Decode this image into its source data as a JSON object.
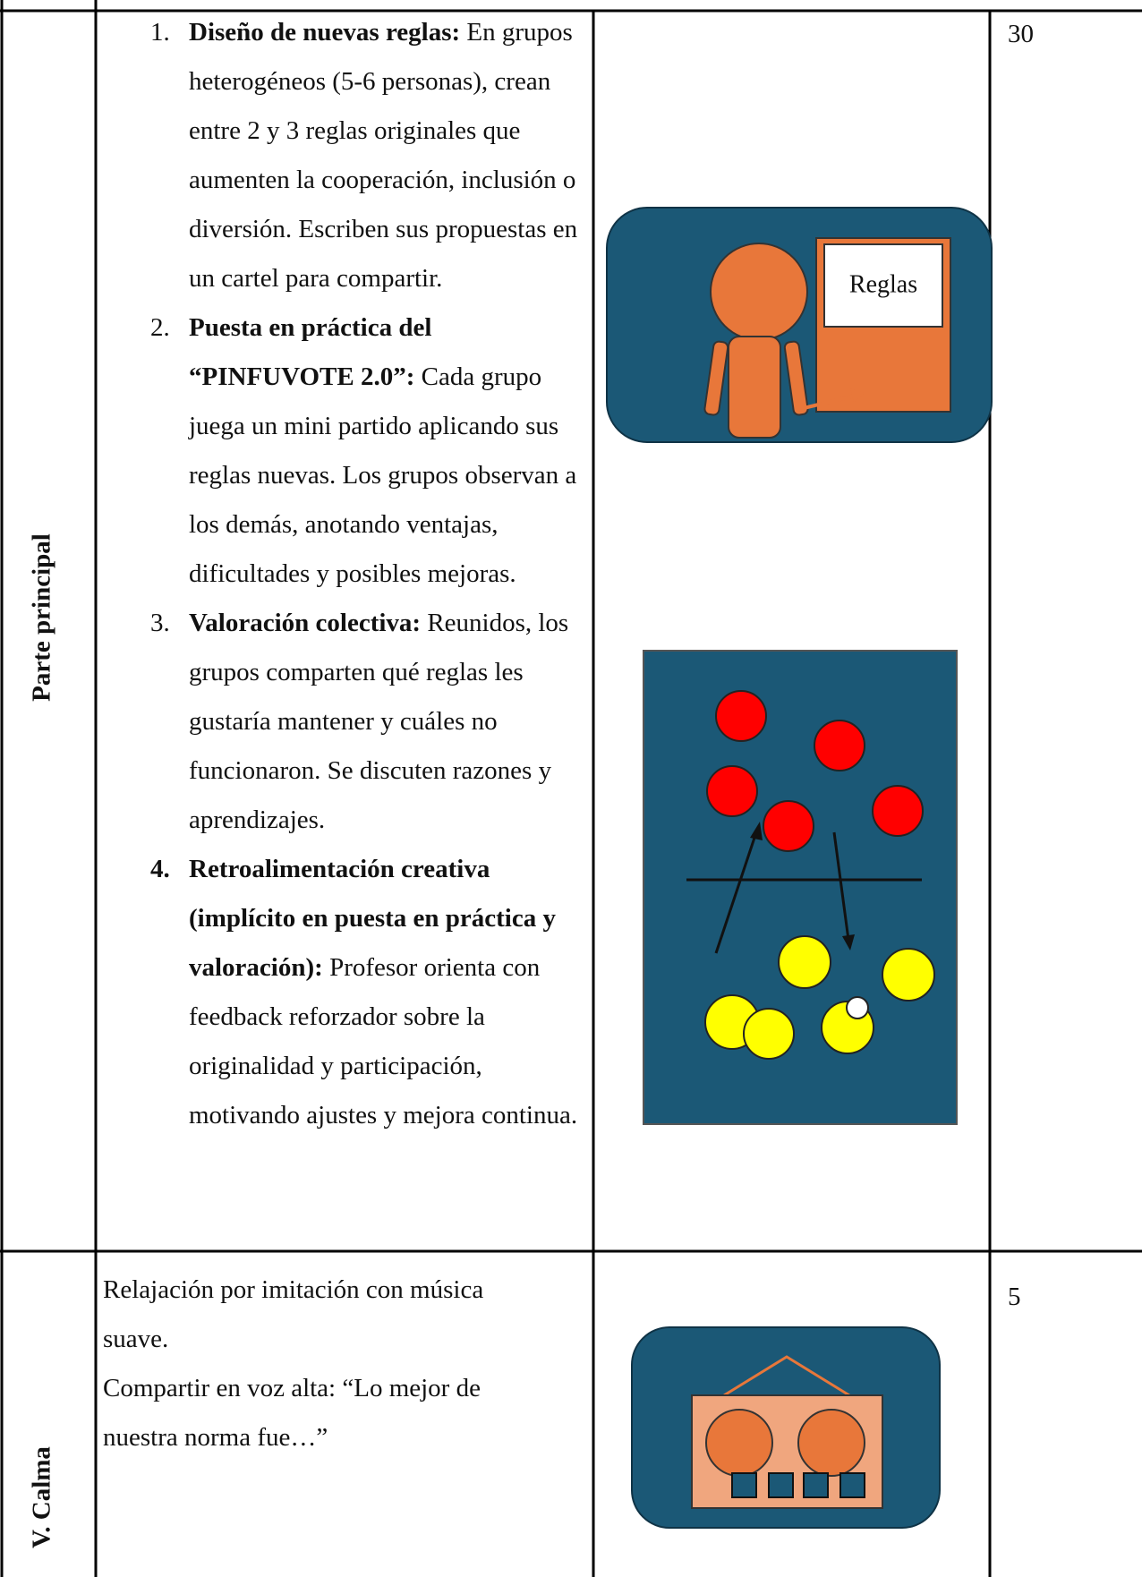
{
  "table": {
    "rows": [
      {
        "phase": "Parte principal",
        "items": [
          {
            "number": "1.",
            "title": "Diseño de nuevas reglas:",
            "text": "En grupos heterogéneos (5-6 personas), crean entre 2 y 3 reglas originales que aumenten la cooperación, inclusión o diversión. Escriben sus propuestas en un cartel para compartir."
          },
          {
            "number": "2.",
            "title": "Puesta en práctica del “PINFUVOTE 2.0”:",
            "text": "Cada grupo juega un mini partido aplicando sus reglas nuevas. Los grupos observan a los demás, anotando ventajas, dificultades y posibles mejoras."
          },
          {
            "number": "3.",
            "title": "Valoración colectiva:",
            "text": "Reunidos, los grupos comparten qué reglas les gustaría mantener y cuáles no funcionaron. Se discuten razones y aprendizajes."
          },
          {
            "number": "4.",
            "title": "Retroalimentación creativa (implícito en puesta en práctica y valoración):",
            "text": "Profesor orienta con feedback reforzador sobre la originalidad y participación, motivando ajustes y mejora continua."
          }
        ],
        "image_label": "Reglas",
        "time": "30"
      },
      {
        "phase": "V. Calma",
        "lines": [
          "Relajación por imitación con música suave.",
          "Compartir en voz alta: “Lo mejor de nuestra norma fue…”"
        ],
        "time": "5"
      }
    ]
  }
}
